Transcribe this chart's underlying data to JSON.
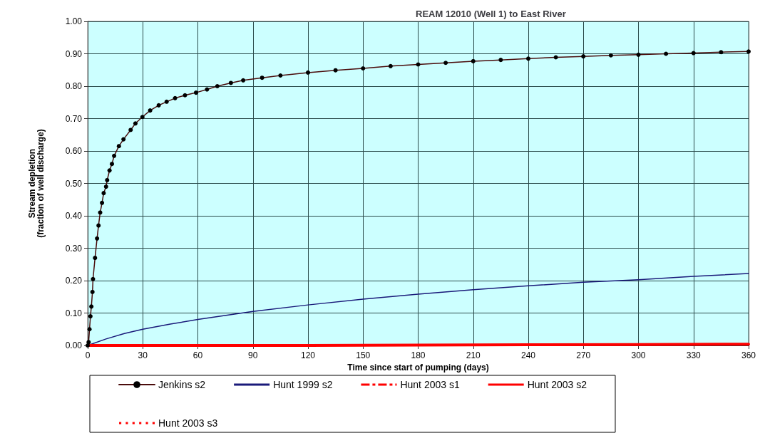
{
  "chart_data": {
    "type": "line",
    "title": "REAM 12010 (Well 1) to East River",
    "xlabel": "Time since start of pumping (days)",
    "ylabel": "Stream depletion\n(fraction of well discharge)",
    "xlim": [
      0,
      360
    ],
    "xticks": [
      0,
      30,
      60,
      90,
      120,
      150,
      180,
      210,
      240,
      270,
      300,
      330,
      360
    ],
    "ylim": [
      0,
      1
    ],
    "yticks": [
      {
        "value": 0,
        "label": "0.00"
      },
      {
        "value": 0.1,
        "label": "0.10"
      },
      {
        "value": 0.2,
        "label": "0.20"
      },
      {
        "value": 0.3,
        "label": "0.30"
      },
      {
        "value": 0.4,
        "label": "0.40"
      },
      {
        "value": 0.5,
        "label": "0.50"
      },
      {
        "value": 0.6,
        "label": "0.60"
      },
      {
        "value": 0.7,
        "label": "0.70"
      },
      {
        "value": 0.8,
        "label": "0.80"
      },
      {
        "value": 0.9,
        "label": "0.90"
      },
      {
        "value": 1,
        "label": "1.00"
      }
    ],
    "grid": true,
    "legend": "bottom",
    "series": [
      {
        "name": "Jenkins s2",
        "color": "#4a0c0c",
        "marker": "circle",
        "line_style": "solid",
        "x": [
          0,
          0.5,
          1,
          1.5,
          2,
          2.6,
          2.9,
          4,
          5.1,
          5.9,
          6.8,
          7.8,
          8.7,
          10,
          10.6,
          11.9,
          13.2,
          14.4,
          17,
          19.5,
          23.4,
          26,
          29.8,
          34,
          38.7,
          43,
          47.6,
          53,
          59,
          65,
          70.6,
          78,
          84.7,
          95,
          105,
          120,
          135,
          150,
          165,
          180,
          195,
          210,
          225,
          240,
          255,
          270,
          285,
          300,
          315,
          330,
          345,
          360
        ],
        "values": [
          0,
          0.01,
          0.05,
          0.09,
          0.12,
          0.165,
          0.205,
          0.27,
          0.33,
          0.37,
          0.41,
          0.44,
          0.47,
          0.49,
          0.51,
          0.54,
          0.56,
          0.585,
          0.615,
          0.636,
          0.665,
          0.685,
          0.705,
          0.725,
          0.741,
          0.752,
          0.763,
          0.772,
          0.78,
          0.79,
          0.8,
          0.81,
          0.818,
          0.826,
          0.833,
          0.842,
          0.849,
          0.855,
          0.862,
          0.867,
          0.872,
          0.877,
          0.881,
          0.885,
          0.889,
          0.892,
          0.895,
          0.897,
          0.9,
          0.902,
          0.905,
          0.907
        ]
      },
      {
        "name": "Hunt 1999 s2",
        "color": "#1a1a7a",
        "marker": "none",
        "line_style": "solid",
        "x": [
          0,
          10,
          20,
          30,
          45,
          60,
          90,
          120,
          150,
          180,
          210,
          240,
          270,
          300,
          330,
          360
        ],
        "values": [
          0,
          0.02,
          0.037,
          0.05,
          0.066,
          0.08,
          0.105,
          0.125,
          0.143,
          0.158,
          0.172,
          0.184,
          0.195,
          0.203,
          0.213,
          0.222
        ]
      },
      {
        "name": "Hunt 2003 s1",
        "color": "#ff0000",
        "marker": "none",
        "line_style": "dashed"
      },
      {
        "name": "Hunt 2003 s2",
        "color": "#ff0000",
        "marker": "none",
        "line_style": "solid",
        "x": [
          0,
          60,
          120,
          180,
          240,
          300,
          360
        ],
        "values": [
          0,
          0,
          0,
          0.001,
          0.002,
          0.003,
          0.004
        ]
      },
      {
        "name": "Hunt 2003 s3",
        "color": "#ff0000",
        "marker": "none",
        "line_style": "dotted"
      }
    ]
  }
}
